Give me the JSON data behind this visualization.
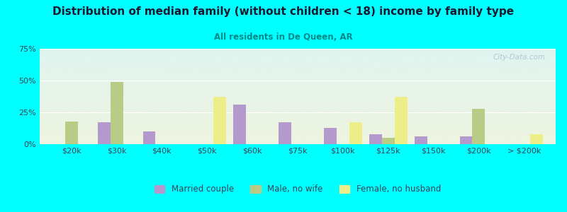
{
  "title": "Distribution of median family (without children < 18) income by family type",
  "subtitle": "All residents in De Queen, AR",
  "background_color": "#00FFFF",
  "categories": [
    "$20k",
    "$30k",
    "$40k",
    "$50k",
    "$60k",
    "$75k",
    "$100k",
    "$125k",
    "$150k",
    "$200k",
    "> $200k"
  ],
  "married_couple": [
    0,
    17,
    10,
    0,
    31,
    17,
    13,
    8,
    6,
    6,
    0
  ],
  "male_no_wife": [
    18,
    49,
    0,
    0,
    0,
    0,
    0,
    5,
    0,
    28,
    0
  ],
  "female_no_husband": [
    0,
    0,
    0,
    37,
    0,
    0,
    17,
    37,
    0,
    0,
    8
  ],
  "married_color": "#b399cc",
  "male_color": "#b8cc88",
  "female_color": "#eeee88",
  "ylim": [
    0,
    75
  ],
  "yticks": [
    0,
    25,
    50,
    75
  ],
  "ytick_labels": [
    "0%",
    "25%",
    "50%",
    "75%"
  ],
  "watermark": "City-Data.com",
  "legend_labels": [
    "Married couple",
    "Male, no wife",
    "Female, no husband"
  ],
  "bar_width": 0.28,
  "plot_bg_top": "#e0f4f0",
  "plot_bg_bottom": "#eef4e0"
}
